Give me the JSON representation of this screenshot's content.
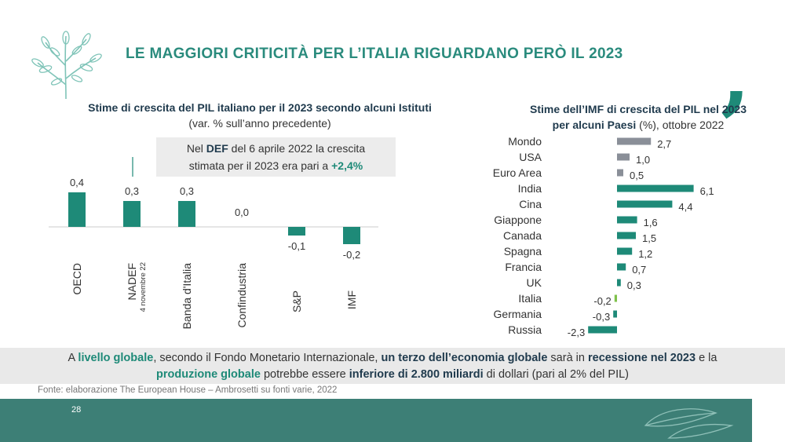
{
  "slide": {
    "title": "LE MAGGIORI CRITICITÀ PER L’ITALIA RIGUARDANO PERÒ IL 2023",
    "comma": ",",
    "page_number": "28",
    "source": "Fonte: elaborazione The European House – Ambrosetti su fonti varie, 2022",
    "accent_color": "#1e8a78",
    "footer_color": "#3d7f76",
    "icons": [
      "olive-branch-icon",
      "comma-icon",
      "arrow-icon",
      "leaf-outline-icon"
    ]
  },
  "left_panel": {
    "title": "Stime di crescita del PIL italiano per il 2023 secondo alcuni Istituti",
    "subtitle": "(var. % sull’anno precedente)",
    "def_note": {
      "line1_pre": "Nel ",
      "line1_bold": "DEF",
      "line1_post": " del 6 aprile 2022 la crescita",
      "line2_pre": "stimata per il 2023 era pari a ",
      "line2_value": "+2,4%"
    }
  },
  "right_panel": {
    "title_line1": "Stime dell’IMF di crescita del PIL nel 2023",
    "title_line2_bold": "per alcuni Paesi",
    "title_line2_normal": " (%), ottobre 2022"
  },
  "banner": {
    "p1": "A ",
    "h1": "livello globale",
    "p2": ", secondo il Fondo Monetario Internazionale, ",
    "h2": "un terzo dell’economia globale",
    "p3": " sarà in ",
    "h3": "recessione nel 2023",
    "p4": " e la",
    "h4": "produzione globale",
    "p5": " potrebbe essere ",
    "h5": "inferiore di 2.800 miliardi",
    "p6": " di dollari (pari al 2% del PIL)"
  },
  "chart_data": [
    {
      "type": "bar",
      "categories": [
        "OECD",
        "NADEF",
        "Banda d'Italia",
        "Confindustria",
        "S&P",
        "IMF"
      ],
      "category_notes": [
        "",
        "4 novembre 22",
        "",
        "",
        "",
        ""
      ],
      "values": [
        0.4,
        0.3,
        0.3,
        0.0,
        -0.1,
        -0.2
      ],
      "value_labels": [
        "0,4",
        "0,3",
        "0,3",
        "0,0",
        "-0,1",
        "-0,2"
      ],
      "ylim": [
        -0.3,
        0.5
      ],
      "bar_color": "#1e8a78",
      "grid": false
    },
    {
      "type": "bar",
      "orientation": "horizontal",
      "categories": [
        "Mondo",
        "USA",
        "Euro Area",
        "India",
        "Cina",
        "Giappone",
        "Canada",
        "Spagna",
        "Francia",
        "UK",
        "Italia",
        "Germania",
        "Russia"
      ],
      "values": [
        2.7,
        1.0,
        0.5,
        6.1,
        4.4,
        1.6,
        1.5,
        1.2,
        0.7,
        0.3,
        -0.2,
        -0.3,
        -2.3
      ],
      "value_labels": [
        "2,7",
        "1,0",
        "0,5",
        "6,1",
        "4,4",
        "1,6",
        "1,5",
        "1,2",
        "0,7",
        "0,3",
        "-0,2",
        "-0,3",
        "-2,3"
      ],
      "colors": [
        "#8a8f98",
        "#8a8f98",
        "#8a8f98",
        "#1e8a78",
        "#1e8a78",
        "#1e8a78",
        "#1e8a78",
        "#1e8a78",
        "#1e8a78",
        "#1e8a78",
        "#7fc14b",
        "#1e8a78",
        "#1e8a78"
      ],
      "xlim": [
        -2.5,
        6.5
      ],
      "grid": false
    }
  ]
}
